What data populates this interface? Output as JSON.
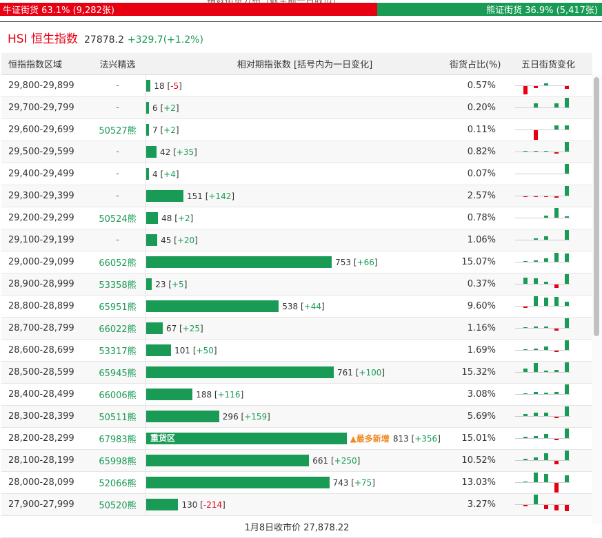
{
  "ratio": {
    "bull_label": "牛证街货 63.1% (9,282张)",
    "bear_label": "熊证街货 36.9% (5,417张)",
    "bull_percent": 63.1,
    "colors": {
      "bull": "#e60012",
      "bear": "#1a9b55"
    }
  },
  "index": {
    "name": "HSI 恒生指数",
    "value": "27878.2",
    "change": "+329.7(+1.2%)"
  },
  "table": {
    "headers": {
      "range": "恒指指数区域",
      "pick": "法兴精选",
      "relative": "相对期指张数 [括号内为一日变化]",
      "pct": "街货占比(%)",
      "five_day": "五日街货变化"
    },
    "rows": [
      {
        "range": "29,800-29,899",
        "pick": "-",
        "count": "18",
        "change": "-5",
        "pct": "0.57%",
        "bar": 18,
        "spark": [
          -12,
          -3,
          3,
          0,
          -4
        ]
      },
      {
        "range": "29,700-29,799",
        "pick": "-",
        "count": "6",
        "change": "+2",
        "pct": "0.20%",
        "bar": 6,
        "spark": [
          0,
          6,
          0,
          6,
          14
        ]
      },
      {
        "range": "29,600-29,699",
        "pick": "50527熊",
        "count": "7",
        "change": "+2",
        "pct": "0.11%",
        "bar": 7,
        "spark": [
          0,
          -14,
          0,
          6,
          6
        ]
      },
      {
        "range": "29,500-29,599",
        "pick": "-",
        "count": "42",
        "change": "+35",
        "pct": "0.82%",
        "bar": 42,
        "spark": [
          1,
          1,
          1,
          -2,
          14
        ]
      },
      {
        "range": "29,400-29,499",
        "pick": "-",
        "count": "4",
        "change": "+4",
        "pct": "0.07%",
        "bar": 4,
        "spark": [
          0,
          0,
          0,
          0,
          14
        ]
      },
      {
        "range": "29,300-29,399",
        "pick": "-",
        "count": "151",
        "change": "+142",
        "pct": "2.57%",
        "bar": 151,
        "spark": [
          -1,
          -1,
          -1,
          -2,
          14
        ]
      },
      {
        "range": "29,200-29,299",
        "pick": "50524熊",
        "count": "48",
        "change": "+2",
        "pct": "0.78%",
        "bar": 48,
        "spark": [
          0,
          0,
          3,
          14,
          2
        ]
      },
      {
        "range": "29,100-29,199",
        "pick": "-",
        "count": "45",
        "change": "+20",
        "pct": "1.06%",
        "bar": 45,
        "spark": [
          0,
          2,
          5,
          0,
          14
        ]
      },
      {
        "range": "29,000-29,099",
        "pick": "66052熊",
        "count": "753",
        "change": "+66",
        "pct": "15.07%",
        "bar": 753,
        "spark": [
          1,
          2,
          5,
          13,
          12
        ]
      },
      {
        "range": "28,900-28,999",
        "pick": "53358熊",
        "count": "23",
        "change": "+5",
        "pct": "0.37%",
        "bar": 23,
        "spark": [
          9,
          8,
          3,
          -5,
          14
        ]
      },
      {
        "range": "28,800-28,899",
        "pick": "65951熊",
        "count": "538",
        "change": "+44",
        "pct": "9.60%",
        "bar": 538,
        "spark": [
          -2,
          14,
          12,
          13,
          6
        ]
      },
      {
        "range": "28,700-28,799",
        "pick": "66022熊",
        "count": "67",
        "change": "+25",
        "pct": "1.16%",
        "bar": 67,
        "spark": [
          1,
          2,
          2,
          -3,
          14
        ]
      },
      {
        "range": "28,600-28,699",
        "pick": "53317熊",
        "count": "101",
        "change": "+50",
        "pct": "1.69%",
        "bar": 101,
        "spark": [
          1,
          2,
          5,
          -2,
          14
        ]
      },
      {
        "range": "28,500-28,599",
        "pick": "65945熊",
        "count": "761",
        "change": "+100",
        "pct": "15.32%",
        "bar": 761,
        "spark": [
          5,
          13,
          2,
          3,
          14
        ]
      },
      {
        "range": "28,400-28,499",
        "pick": "66006熊",
        "count": "188",
        "change": "+116",
        "pct": "3.08%",
        "bar": 188,
        "spark": [
          1,
          3,
          2,
          3,
          14
        ]
      },
      {
        "range": "28,300-28,399",
        "pick": "50511熊",
        "count": "296",
        "change": "+159",
        "pct": "5.69%",
        "bar": 296,
        "spark": [
          3,
          5,
          5,
          -2,
          14
        ]
      },
      {
        "range": "28,200-28,299",
        "pick": "67983熊",
        "count": "813",
        "change": "+356",
        "pct": "15.01%",
        "bar": 813,
        "label": "重货区",
        "hot": "▲最多新增",
        "spark": [
          2,
          3,
          6,
          -2,
          14
        ]
      },
      {
        "range": "28,100-28,199",
        "pick": "65998熊",
        "count": "661",
        "change": "+250",
        "pct": "10.52%",
        "bar": 661,
        "spark": [
          2,
          4,
          10,
          -5,
          14
        ]
      },
      {
        "range": "28,000-28,099",
        "pick": "52066熊",
        "count": "743",
        "change": "+75",
        "pct": "13.03%",
        "bar": 743,
        "spark": [
          1,
          14,
          12,
          -14,
          10
        ]
      },
      {
        "range": "27,900-27,999",
        "pick": "50520熊",
        "count": "130",
        "change": "-214",
        "pct": "3.27%",
        "bar": 130,
        "spark": [
          -2,
          14,
          -6,
          -8,
          -9
        ]
      }
    ],
    "footer": "1月8日收市价 27,878.22"
  }
}
